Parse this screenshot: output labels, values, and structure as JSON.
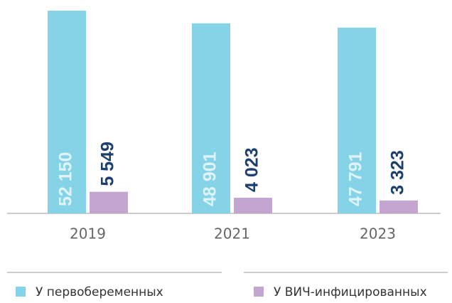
{
  "chart_data": {
    "type": "bar",
    "categories": [
      "2019",
      "2021",
      "2023"
    ],
    "series": [
      {
        "name": "У первобеременных",
        "color": "#85d3e6",
        "values": [
          52150,
          48901,
          47791
        ],
        "value_labels": [
          "52 150",
          "48 901",
          "47 791"
        ]
      },
      {
        "name": "У ВИЧ-инфицированных",
        "color": "#c4a5d0",
        "values": [
          5549,
          4023,
          3323
        ],
        "value_labels": [
          "5 549",
          "4 023",
          "3 323"
        ]
      }
    ]
  }
}
